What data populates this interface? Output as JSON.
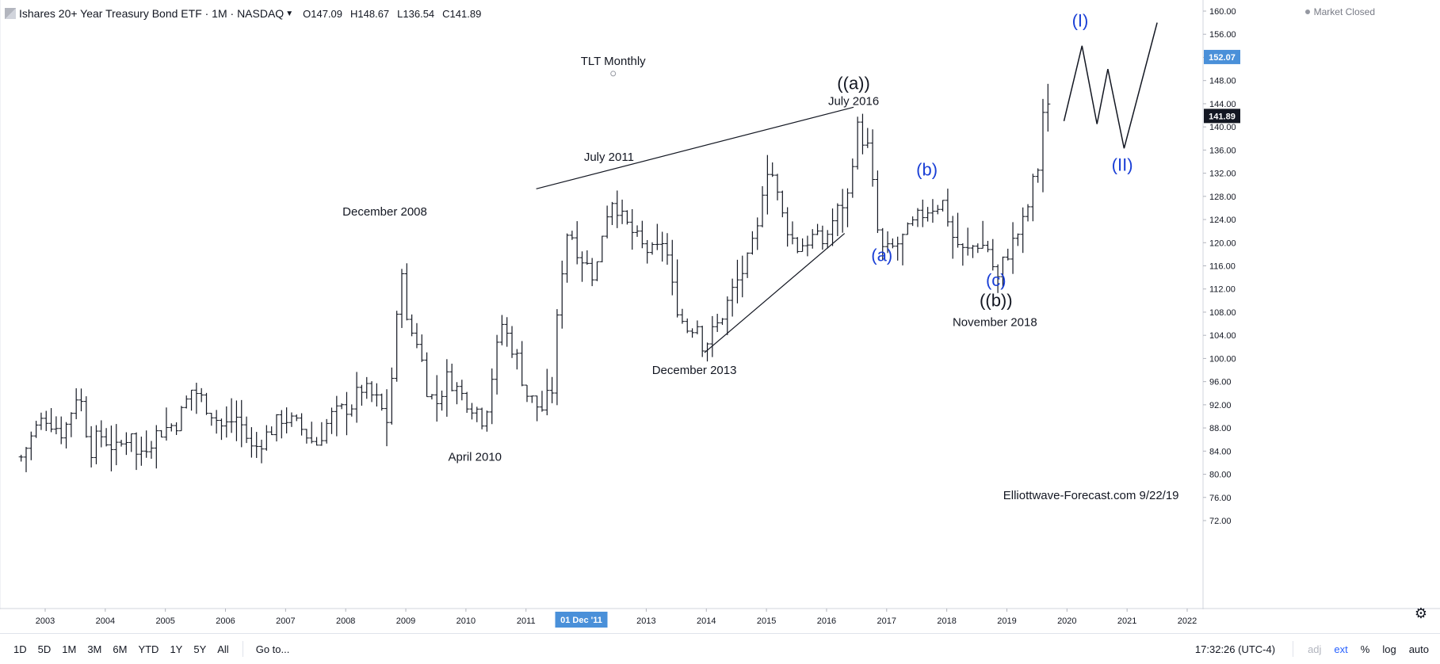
{
  "header": {
    "symbol": "Ishares 20+ Year Treasury Bond ETF · 1M · NASDAQ",
    "ohlc": [
      {
        "k": "O",
        "v": "147.09"
      },
      {
        "k": "H",
        "v": "148.67"
      },
      {
        "k": "L",
        "v": "136.54"
      },
      {
        "k": "C",
        "v": "141.89"
      }
    ],
    "market_status": "Market Closed",
    "chevron_icon": "chevron-down-icon",
    "logo_icon": "tradingview-logo-icon"
  },
  "toolbar": {
    "timeframes": [
      "1D",
      "5D",
      "1M",
      "3M",
      "6M",
      "YTD",
      "1Y",
      "5Y",
      "All"
    ],
    "goto_label": "Go to...",
    "clock": "17:32:26 (UTC-4)",
    "adj": "adj",
    "ext": "ext",
    "percent": "%",
    "log": "log",
    "auto": "auto",
    "settings_icon": "gear-icon"
  },
  "colors": {
    "price_badge": "#2962ff",
    "crosshair_badge": "#4a90d9",
    "last_price_badge": "#131722",
    "wave_blue": "#1a3fd6",
    "bars": "#131722"
  },
  "chart_data": {
    "type": "ohlc",
    "interval": "monthly",
    "y_axis": {
      "min": 72,
      "max": 160,
      "ticks": [
        "72.00",
        "76.00",
        "80.00",
        "84.00",
        "88.00",
        "92.00",
        "96.00",
        "100.00",
        "104.00",
        "108.00",
        "112.00",
        "116.00",
        "120.00",
        "124.00",
        "128.00",
        "132.00",
        "136.00",
        "140.00",
        "144.00",
        "148.00",
        "152.00",
        "156.00",
        "160.00"
      ]
    },
    "x_axis": {
      "min": 2002.6,
      "max": 2022.95,
      "ticks": [
        "2003",
        "2004",
        "2005",
        "2006",
        "2007",
        "2008",
        "2009",
        "2010",
        "2011",
        "01 Dec '11",
        "2013",
        "2014",
        "2015",
        "2016",
        "2017",
        "2018",
        "2019",
        "2020",
        "2021",
        "2022"
      ]
    },
    "price_labels": {
      "badge": "152.07",
      "last": "141.89"
    },
    "crosshair_x_label": "01 Dec '11",
    "anchors": [
      [
        2002.6,
        83
      ],
      [
        2002.85,
        88
      ],
      [
        2003.0,
        90
      ],
      [
        2003.3,
        87
      ],
      [
        2003.5,
        93
      ],
      [
        2003.55,
        95
      ],
      [
        2003.75,
        84
      ],
      [
        2003.9,
        87
      ],
      [
        2004.2,
        84
      ],
      [
        2004.45,
        88
      ],
      [
        2004.5,
        83
      ],
      [
        2004.85,
        87
      ],
      [
        2005.2,
        89
      ],
      [
        2005.45,
        95
      ],
      [
        2005.75,
        91
      ],
      [
        2005.95,
        88
      ],
      [
        2006.2,
        90
      ],
      [
        2006.45,
        84
      ],
      [
        2006.7,
        87
      ],
      [
        2006.95,
        90
      ],
      [
        2007.25,
        88
      ],
      [
        2007.5,
        85
      ],
      [
        2007.75,
        90
      ],
      [
        2008.1,
        92
      ],
      [
        2008.25,
        95
      ],
      [
        2008.5,
        93
      ],
      [
        2008.7,
        89
      ],
      [
        2008.95,
        118
      ],
      [
        2009.0,
        106
      ],
      [
        2009.2,
        103
      ],
      [
        2009.35,
        95
      ],
      [
        2009.5,
        92
      ],
      [
        2009.7,
        97
      ],
      [
        2009.9,
        94
      ],
      [
        2010.2,
        91
      ],
      [
        2010.3,
        89
      ],
      [
        2010.45,
        98
      ],
      [
        2010.6,
        106
      ],
      [
        2010.85,
        100
      ],
      [
        2011.0,
        94
      ],
      [
        2011.25,
        91
      ],
      [
        2011.45,
        95
      ],
      [
        2011.55,
        112
      ],
      [
        2011.7,
        123
      ],
      [
        2011.85,
        119
      ],
      [
        2011.95,
        117
      ],
      [
        2012.15,
        114
      ],
      [
        2012.3,
        124
      ],
      [
        2012.45,
        128
      ],
      [
        2012.6,
        124
      ],
      [
        2012.75,
        122
      ],
      [
        2012.95,
        119
      ],
      [
        2013.15,
        118
      ],
      [
        2013.3,
        121
      ],
      [
        2013.45,
        111
      ],
      [
        2013.65,
        105
      ],
      [
        2013.85,
        106
      ],
      [
        2013.95,
        102
      ],
      [
        2014.2,
        106
      ],
      [
        2014.45,
        112
      ],
      [
        2014.7,
        117
      ],
      [
        2014.85,
        122
      ],
      [
        2014.95,
        131
      ],
      [
        2015.05,
        134
      ],
      [
        2015.25,
        125
      ],
      [
        2015.5,
        119
      ],
      [
        2015.75,
        121
      ],
      [
        2015.95,
        120
      ],
      [
        2016.15,
        125
      ],
      [
        2016.35,
        128
      ],
      [
        2016.5,
        140
      ],
      [
        2016.7,
        136
      ],
      [
        2016.85,
        122
      ],
      [
        2016.95,
        118
      ],
      [
        2017.1,
        119
      ],
      [
        2017.3,
        121
      ],
      [
        2017.5,
        124
      ],
      [
        2017.7,
        126
      ],
      [
        2017.95,
        127
      ],
      [
        2018.1,
        121
      ],
      [
        2018.3,
        118
      ],
      [
        2018.5,
        120
      ],
      [
        2018.7,
        119
      ],
      [
        2018.83,
        113
      ],
      [
        2018.95,
        117
      ],
      [
        2019.15,
        121
      ],
      [
        2019.3,
        124
      ],
      [
        2019.45,
        131
      ],
      [
        2019.55,
        134
      ],
      [
        2019.62,
        146
      ],
      [
        2019.7,
        142
      ]
    ],
    "projection_path": [
      [
        2019.95,
        141
      ],
      [
        2020.25,
        154
      ],
      [
        2020.5,
        140.5
      ],
      [
        2020.68,
        150
      ],
      [
        2020.95,
        136.3
      ],
      [
        2021.5,
        158
      ]
    ],
    "trendlines": [
      {
        "from": [
          2011.17,
          129.3
        ],
        "to": [
          2016.45,
          143.4
        ]
      },
      {
        "from": [
          2013.97,
          101
        ],
        "to": [
          2016.3,
          121.6
        ]
      }
    ],
    "annotations": [
      {
        "text": "TLT Monthly",
        "x": 2012.45,
        "y": 150.7,
        "color": "dark",
        "size": "medium"
      },
      {
        "text": "((a))",
        "x": 2016.45,
        "y": 146.5,
        "color": "dark",
        "size": "large"
      },
      {
        "text": "July 2016",
        "x": 2016.45,
        "y": 143.8,
        "color": "dark",
        "size": "medium"
      },
      {
        "text": "July 2011",
        "x": 2012.38,
        "y": 134.1,
        "color": "dark",
        "size": "medium"
      },
      {
        "text": "December 2008",
        "x": 2008.65,
        "y": 124.7,
        "color": "dark",
        "size": "medium"
      },
      {
        "text": "December 2013",
        "x": 2013.8,
        "y": 97.3,
        "color": "dark",
        "size": "medium"
      },
      {
        "text": "April 2010",
        "x": 2010.15,
        "y": 82.3,
        "color": "dark",
        "size": "medium"
      },
      {
        "text": "(a)",
        "x": 2016.92,
        "y": 116.8,
        "color": "blue",
        "size": "large"
      },
      {
        "text": "(b)",
        "x": 2017.67,
        "y": 131.6,
        "color": "blue",
        "size": "large"
      },
      {
        "text": "(c)",
        "x": 2018.82,
        "y": 112.5,
        "color": "blue",
        "size": "large"
      },
      {
        "text": "((b))",
        "x": 2018.82,
        "y": 109.0,
        "color": "dark",
        "size": "large"
      },
      {
        "text": "November 2018",
        "x": 2018.8,
        "y": 105.6,
        "color": "dark",
        "size": "medium"
      },
      {
        "text": "(I)",
        "x": 2020.22,
        "y": 157.3,
        "color": "blue",
        "size": "large"
      },
      {
        "text": "(II)",
        "x": 2020.92,
        "y": 132.4,
        "color": "blue",
        "size": "large"
      },
      {
        "text": "Elliottwave-Forecast.com 9/22/19",
        "x": 2020.4,
        "y": 75.7,
        "color": "dark",
        "size": "medium"
      }
    ]
  }
}
